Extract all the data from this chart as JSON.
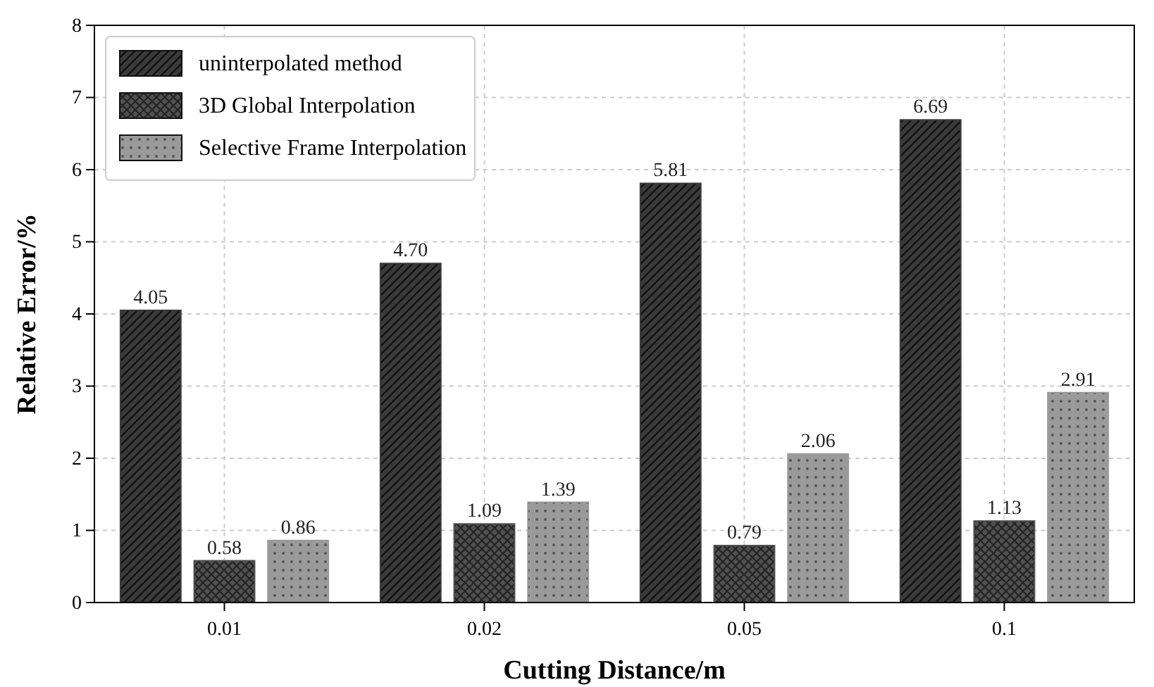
{
  "chart_data": {
    "type": "bar",
    "xlabel": "Cutting Distance/m",
    "ylabel": "Relative Error/%",
    "categories": [
      "0.01",
      "0.02",
      "0.05",
      "0.1"
    ],
    "series": [
      {
        "name": "uninterpolated method",
        "color": "#3a3a3a",
        "values": [
          4.05,
          4.7,
          5.81,
          6.69
        ],
        "value_labels": [
          "4.05",
          "4.70",
          "5.81",
          "6.69"
        ]
      },
      {
        "name": "3D Global Interpolation",
        "color": "#505050",
        "values": [
          0.58,
          1.09,
          0.79,
          1.13
        ],
        "value_labels": [
          "0.58",
          "1.09",
          "0.79",
          "1.13"
        ]
      },
      {
        "name": "Selective Frame Interpolation",
        "color": "#9a9a9a",
        "values": [
          0.86,
          1.39,
          2.06,
          2.91
        ],
        "value_labels": [
          "0.86",
          "1.39",
          "2.06",
          "2.91"
        ]
      }
    ],
    "ylim": [
      0,
      8
    ],
    "yticks": [
      0,
      1,
      2,
      3,
      4,
      5,
      6,
      7,
      8
    ],
    "grid": true,
    "legend": "top left"
  }
}
